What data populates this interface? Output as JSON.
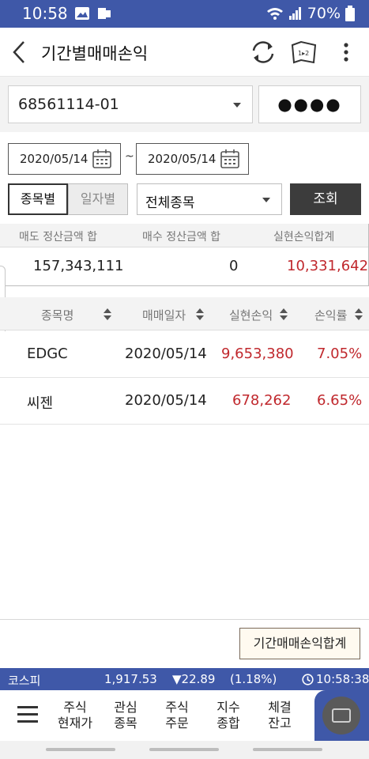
{
  "status_bar": {
    "time": "10:58",
    "battery": "70%"
  },
  "header": {
    "title": "기간별매매손익"
  },
  "account": {
    "number": "68561114-01",
    "password_mask": "●●●●"
  },
  "dates": {
    "from": "2020/05/14",
    "separator": "~",
    "to": "2020/05/14"
  },
  "filters": {
    "by_stock": "종목별",
    "by_date": "일자별",
    "stock_type": "전체종목",
    "query_button": "조회"
  },
  "summary": {
    "headers": [
      "매도 정산금액 합",
      "매수 정산금액 합",
      "실현손익합계"
    ],
    "values": [
      "157,343,111",
      "0",
      "10,331,642"
    ]
  },
  "table": {
    "headers": [
      "종목명",
      "매매일자",
      "실현손익",
      "손익률"
    ],
    "rows": [
      {
        "name": "EDGC",
        "date": "2020/05/14",
        "pnl": "9,653,380",
        "rate": "7.05%"
      },
      {
        "name": "씨젠",
        "date": "2020/05/14",
        "pnl": "678,262",
        "rate": "6.65%"
      }
    ]
  },
  "footer": {
    "summary_button": "기간매매손익합계"
  },
  "ticker": {
    "index_name": "코스피",
    "value": "1,917.53",
    "change": "▼22.89",
    "change_pct": "(1.18%)",
    "time": "10:58:38"
  },
  "bottom_nav": {
    "items": [
      {
        "line1": "주식",
        "line2": "현재가"
      },
      {
        "line1": "관심",
        "line2": "종목"
      },
      {
        "line1": "주식",
        "line2": "주문"
      },
      {
        "line1": "지수",
        "line2": "종합"
      },
      {
        "line1": "체결",
        "line2": "잔고"
      }
    ]
  },
  "colors": {
    "brand": "#3f58a8",
    "profit": "#c0282d"
  }
}
